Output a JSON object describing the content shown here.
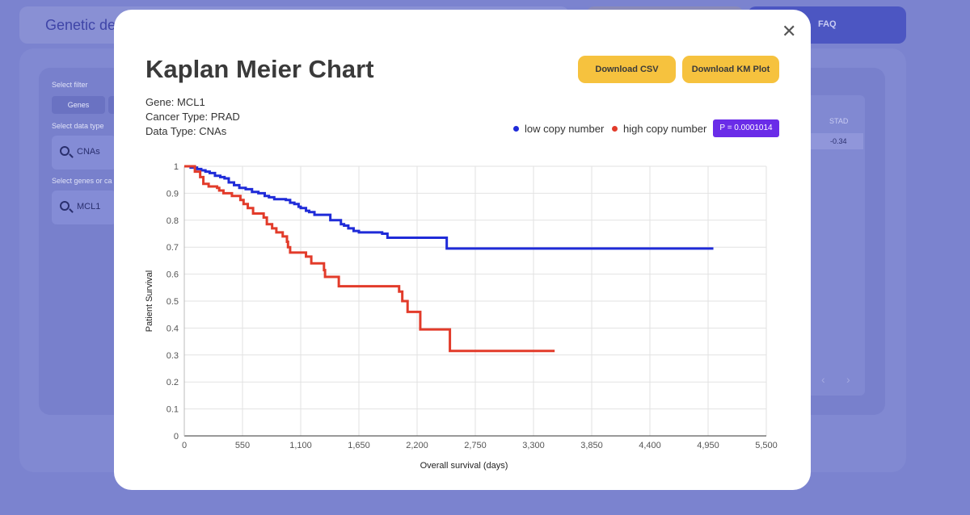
{
  "background": {
    "header_title": "Genetic de",
    "faq_label": "FAQ",
    "select_filter_label": "Select filter",
    "genes_chip": "Genes",
    "select_data_type_label": "Select data type",
    "data_type_value": "CNAs",
    "select_genes_label": "Select genes or ca",
    "genes_value": "MCL1",
    "table_header": "STAD",
    "table_cell": "-0.34",
    "prev_arrow": "‹",
    "next_arrow": "›"
  },
  "modal": {
    "title": "Kaplan Meier Chart",
    "close_icon": "close-icon",
    "download_csv_label": "Download CSV",
    "download_km_label": "Download KM Plot",
    "gene_line": "Gene: MCL1",
    "cancer_line": "Cancer Type: PRAD",
    "datatype_line": "Data Type: CNAs",
    "p_value": "P = 0.0001014"
  },
  "chart_data": {
    "type": "line",
    "xlabel": "Overall survival (days)",
    "ylabel": "Patient Survival",
    "xlim": [
      0,
      5500
    ],
    "ylim": [
      0,
      1
    ],
    "x_ticks": [
      0,
      550,
      1100,
      1650,
      2200,
      2750,
      3300,
      3850,
      4400,
      4950,
      5500
    ],
    "x_tick_labels": [
      "0",
      "550",
      "1,100",
      "1,650",
      "2,200",
      "2,750",
      "3,300",
      "3,850",
      "4,400",
      "4,950",
      "5,500"
    ],
    "y_ticks": [
      0,
      0.1,
      0.2,
      0.3,
      0.4,
      0.5,
      0.6,
      0.7,
      0.8,
      0.9,
      1
    ],
    "y_tick_labels": [
      "0",
      "0.1",
      "0.2",
      "0.3",
      "0.4",
      "0.5",
      "0.6",
      "0.7",
      "0.8",
      "0.9",
      "1"
    ],
    "grid": true,
    "legend_position": "top-right",
    "series": [
      {
        "name": "low copy number",
        "color": "#1f2bd8",
        "step": true,
        "points": [
          [
            0,
            1
          ],
          [
            60,
            0.995
          ],
          [
            120,
            0.99
          ],
          [
            160,
            0.985
          ],
          [
            200,
            0.98
          ],
          [
            240,
            0.975
          ],
          [
            290,
            0.965
          ],
          [
            340,
            0.96
          ],
          [
            380,
            0.955
          ],
          [
            420,
            0.94
          ],
          [
            470,
            0.93
          ],
          [
            520,
            0.92
          ],
          [
            580,
            0.915
          ],
          [
            640,
            0.905
          ],
          [
            700,
            0.9
          ],
          [
            760,
            0.89
          ],
          [
            800,
            0.885
          ],
          [
            850,
            0.878
          ],
          [
            960,
            0.875
          ],
          [
            1000,
            0.865
          ],
          [
            1040,
            0.86
          ],
          [
            1080,
            0.85
          ],
          [
            1100,
            0.845
          ],
          [
            1150,
            0.835
          ],
          [
            1180,
            0.83
          ],
          [
            1230,
            0.82
          ],
          [
            1330,
            0.82
          ],
          [
            1380,
            0.8
          ],
          [
            1480,
            0.785
          ],
          [
            1510,
            0.78
          ],
          [
            1550,
            0.77
          ],
          [
            1600,
            0.76
          ],
          [
            1650,
            0.755
          ],
          [
            1770,
            0.755
          ],
          [
            1870,
            0.75
          ],
          [
            1920,
            0.735
          ],
          [
            2070,
            0.735
          ],
          [
            2470,
            0.735
          ],
          [
            2480,
            0.695
          ],
          [
            5000,
            0.695
          ]
        ]
      },
      {
        "name": "high copy number",
        "color": "#e23b2a",
        "step": true,
        "points": [
          [
            0,
            1
          ],
          [
            100,
            0.98
          ],
          [
            150,
            0.96
          ],
          [
            180,
            0.935
          ],
          [
            230,
            0.925
          ],
          [
            310,
            0.92
          ],
          [
            330,
            0.91
          ],
          [
            370,
            0.9
          ],
          [
            450,
            0.89
          ],
          [
            530,
            0.875
          ],
          [
            560,
            0.86
          ],
          [
            600,
            0.845
          ],
          [
            650,
            0.825
          ],
          [
            750,
            0.81
          ],
          [
            780,
            0.785
          ],
          [
            830,
            0.77
          ],
          [
            870,
            0.755
          ],
          [
            930,
            0.74
          ],
          [
            970,
            0.72
          ],
          [
            980,
            0.7
          ],
          [
            1000,
            0.68
          ],
          [
            1150,
            0.665
          ],
          [
            1200,
            0.64
          ],
          [
            1320,
            0.615
          ],
          [
            1330,
            0.59
          ],
          [
            1460,
            0.555
          ],
          [
            1620,
            0.555
          ],
          [
            2030,
            0.535
          ],
          [
            2060,
            0.5
          ],
          [
            2110,
            0.46
          ],
          [
            2230,
            0.395
          ],
          [
            2510,
            0.315
          ],
          [
            3500,
            0.315
          ]
        ]
      }
    ]
  }
}
